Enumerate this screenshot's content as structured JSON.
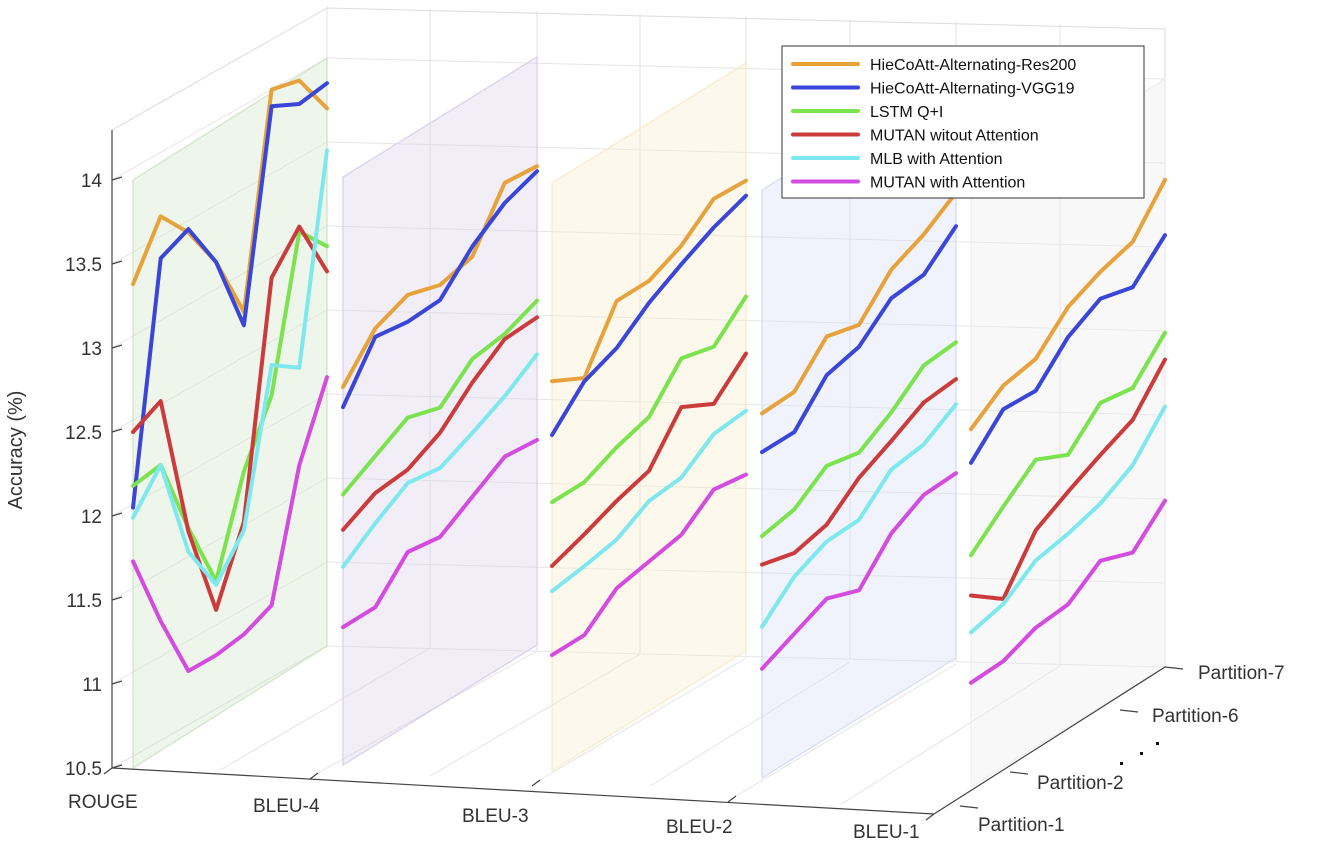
{
  "chart_data": {
    "type": "line",
    "title": "",
    "ylabel": "Accuracy (%)",
    "ylim": [
      10.5,
      14
    ],
    "y_ticks": [
      "10.5",
      "11",
      "11.5",
      "12",
      "12.5",
      "13",
      "13.5",
      "14"
    ],
    "metrics": [
      "ROUGE",
      "BLEU-4",
      "BLEU-3",
      "BLEU-2",
      "BLEU-1"
    ],
    "partition_labels": [
      "Partition-7",
      "Partition-6",
      "Partition-2",
      "Partition-1"
    ],
    "legend_position": "top-right",
    "grid": true,
    "panel_colors": [
      "#cfe3c4",
      "#d8cde8",
      "#f6ebc6",
      "#d3dcf4",
      "#ececec"
    ],
    "series": [
      {
        "name": "HieCoAtt-Alternating-Res200",
        "color": "#e8a23c",
        "values": [
          [
            13.38,
            13.68,
            13.48,
            13.2,
            12.8,
            14.02,
            13.97,
            13.7
          ],
          [
            12.75,
            12.98,
            13.06,
            13.0,
            13.05,
            13.37,
            13.35
          ],
          [
            12.82,
            12.72,
            13.06,
            13.06,
            13.15,
            13.31,
            13.3
          ],
          [
            12.67,
            12.68,
            12.89,
            12.84,
            13.05,
            13.14,
            13.27
          ],
          [
            12.63,
            12.77,
            12.81,
            13.0,
            13.09,
            13.15,
            13.4
          ]
        ]
      },
      {
        "name": "HieCoAtt-Alternating-VGG19",
        "color": "#3a46d8",
        "values": [
          [
            12.05,
            13.43,
            13.5,
            13.2,
            12.72,
            13.92,
            13.83,
            13.85
          ],
          [
            12.63,
            12.93,
            12.9,
            12.91,
            13.11,
            13.25,
            13.32
          ],
          [
            12.5,
            12.7,
            12.78,
            12.93,
            13.04,
            13.14,
            13.21
          ],
          [
            12.44,
            12.44,
            12.66,
            12.71,
            12.88,
            12.9,
            13.07
          ],
          [
            12.43,
            12.63,
            12.62,
            12.82,
            12.93,
            12.88,
            13.07
          ]
        ]
      },
      {
        "name": "LSTM Q+I",
        "color": "#7be34e",
        "values": [
          [
            12.18,
            12.2,
            11.72,
            11.3,
            11.85,
            12.2,
            13.07,
            12.88
          ],
          [
            12.11,
            12.22,
            12.33,
            12.27,
            12.44,
            12.47,
            12.55
          ],
          [
            12.1,
            12.1,
            12.19,
            12.25,
            12.48,
            12.43,
            12.61
          ],
          [
            11.94,
            11.98,
            12.12,
            12.08,
            12.2,
            12.36,
            12.38
          ],
          [
            11.88,
            12.05,
            12.21,
            12.12,
            12.31,
            12.28,
            12.49
          ]
        ]
      },
      {
        "name": "MUTAN witout Attention",
        "color": "#cc3b3b",
        "values": [
          [
            12.5,
            12.58,
            11.7,
            11.13,
            11.55,
            12.9,
            13.1,
            12.73
          ],
          [
            11.9,
            12.0,
            12.02,
            12.12,
            12.3,
            12.44,
            12.45
          ],
          [
            11.72,
            11.79,
            11.87,
            11.93,
            12.19,
            12.09,
            12.27
          ],
          [
            11.77,
            11.72,
            11.77,
            11.93,
            12.03,
            12.14,
            12.16
          ],
          [
            11.64,
            11.5,
            11.79,
            11.9,
            12.0,
            12.09,
            12.33
          ]
        ]
      },
      {
        "name": "MLB with Attention",
        "color": "#7ee8ef",
        "values": [
          [
            11.99,
            12.2,
            11.58,
            11.28,
            11.5,
            12.38,
            12.26,
            13.45
          ],
          [
            11.68,
            11.82,
            11.94,
            11.91,
            12.0,
            12.1,
            12.23
          ],
          [
            11.57,
            11.6,
            11.64,
            11.75,
            11.77,
            11.91,
            11.93
          ],
          [
            11.4,
            11.58,
            11.67,
            11.68,
            11.86,
            11.89,
            12.01
          ],
          [
            11.42,
            11.47,
            11.61,
            11.65,
            11.71,
            11.82,
            12.05
          ]
        ]
      },
      {
        "name": "MUTAN with Attention",
        "color": "#d44be0",
        "values": [
          [
            11.73,
            11.27,
            10.87,
            10.86,
            10.88,
            10.95,
            11.68,
            12.1
          ],
          [
            11.32,
            11.32,
            11.53,
            11.5,
            11.62,
            11.74,
            11.72
          ],
          [
            11.19,
            11.19,
            11.35,
            11.39,
            11.43,
            11.58,
            11.55
          ],
          [
            11.15,
            11.24,
            11.33,
            11.26,
            11.48,
            11.59,
            11.6
          ],
          [
            11.12,
            11.13,
            11.21,
            11.23,
            11.37,
            11.3,
            11.49
          ]
        ]
      }
    ]
  }
}
